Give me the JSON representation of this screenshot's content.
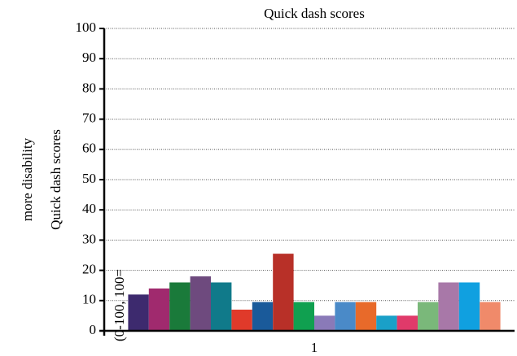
{
  "chart_data": {
    "type": "bar",
    "title": "Quick dash scores",
    "ylabel_lines": [
      "more disability",
      "Quick dash scores"
    ],
    "annotation": "(0-100, 100=",
    "categories": [
      "1"
    ],
    "series": [
      {
        "color": "#3d2a6e",
        "values": [
          12
        ]
      },
      {
        "color": "#a02a6e",
        "values": [
          14
        ]
      },
      {
        "color": "#1a7a3a",
        "values": [
          16
        ]
      },
      {
        "color": "#6e4a7e",
        "values": [
          18
        ]
      },
      {
        "color": "#107a8a",
        "values": [
          16
        ]
      },
      {
        "color": "#e03a2a",
        "values": [
          7
        ]
      },
      {
        "color": "#1a5a9a",
        "values": [
          9.5
        ]
      },
      {
        "color": "#b83028",
        "values": [
          25.5
        ]
      },
      {
        "color": "#10a050",
        "values": [
          9.5
        ]
      },
      {
        "color": "#8a7ab8",
        "values": [
          5
        ]
      },
      {
        "color": "#4a8ac8",
        "values": [
          9.5
        ]
      },
      {
        "color": "#e86a2a",
        "values": [
          9.5
        ]
      },
      {
        "color": "#1aa0c8",
        "values": [
          5
        ]
      },
      {
        "color": "#e03a6a",
        "values": [
          5
        ]
      },
      {
        "color": "#7ab87a",
        "values": [
          9.5
        ]
      },
      {
        "color": "#a878a8",
        "values": [
          16
        ]
      },
      {
        "color": "#10a0e0",
        "values": [
          16
        ]
      },
      {
        "color": "#f08a6a",
        "values": [
          9.5
        ]
      }
    ],
    "ylim": [
      0,
      100
    ],
    "yticks": [
      0,
      10,
      20,
      30,
      40,
      50,
      60,
      70,
      80,
      90,
      100
    ],
    "grid": true
  }
}
